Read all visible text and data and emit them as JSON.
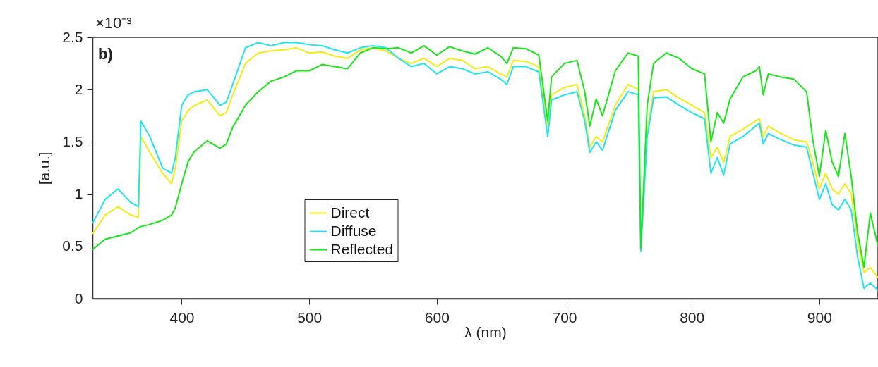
{
  "chart_data": {
    "type": "line",
    "xlabel": "λ (nm)",
    "ylabel": "[a.u.]",
    "annotations": [
      "×10⁻³",
      "b)"
    ],
    "x": [
      330,
      340,
      350,
      360,
      366,
      368,
      375,
      385,
      392,
      395,
      400,
      405,
      410,
      420,
      430,
      435,
      440,
      450,
      460,
      470,
      480,
      490,
      500,
      510,
      520,
      530,
      540,
      550,
      560,
      570,
      580,
      590,
      600,
      610,
      620,
      630,
      640,
      650,
      655,
      660,
      670,
      680,
      687,
      690,
      700,
      710,
      716,
      720,
      725,
      730,
      740,
      750,
      758,
      760,
      765,
      770,
      780,
      790,
      800,
      810,
      815,
      820,
      825,
      830,
      840,
      850,
      853,
      856,
      860,
      870,
      880,
      890,
      895,
      900,
      905,
      910,
      915,
      920,
      925,
      930,
      935,
      940,
      946
    ],
    "series": [
      {
        "name": "Direct",
        "color": "#f2ee12",
        "values": [
          0.62,
          0.8,
          0.88,
          0.8,
          0.78,
          1.55,
          1.4,
          1.2,
          1.1,
          1.25,
          1.7,
          1.8,
          1.85,
          1.9,
          1.75,
          1.78,
          1.95,
          2.25,
          2.35,
          2.37,
          2.38,
          2.4,
          2.35,
          2.36,
          2.32,
          2.3,
          2.38,
          2.4,
          2.37,
          2.3,
          2.25,
          2.3,
          2.22,
          2.3,
          2.28,
          2.2,
          2.22,
          2.15,
          2.12,
          2.28,
          2.27,
          2.22,
          1.65,
          1.95,
          2.02,
          2.05,
          1.75,
          1.45,
          1.55,
          1.5,
          1.85,
          2.05,
          2.0,
          null,
          1.6,
          1.98,
          2.0,
          1.92,
          1.85,
          1.78,
          1.35,
          1.45,
          1.3,
          1.55,
          1.62,
          1.7,
          1.72,
          1.55,
          1.65,
          1.58,
          1.52,
          1.5,
          1.3,
          1.05,
          1.2,
          1.05,
          1.0,
          1.1,
          1.0,
          0.55,
          0.25,
          0.3,
          0.2
        ]
      },
      {
        "name": "Diffuse",
        "color": "#1ee5f2",
        "values": [
          0.72,
          0.95,
          1.05,
          0.92,
          0.88,
          1.7,
          1.55,
          1.25,
          1.2,
          1.35,
          1.85,
          1.95,
          1.98,
          2.0,
          1.85,
          1.88,
          2.05,
          2.4,
          2.45,
          2.42,
          2.45,
          2.45,
          2.43,
          2.42,
          2.38,
          2.35,
          2.4,
          2.42,
          2.4,
          2.3,
          2.22,
          2.25,
          2.15,
          2.22,
          2.2,
          2.15,
          2.17,
          2.1,
          2.05,
          2.22,
          2.22,
          2.17,
          1.55,
          1.9,
          1.95,
          1.98,
          1.7,
          1.4,
          1.5,
          1.42,
          1.8,
          1.98,
          1.95,
          0.45,
          1.55,
          1.92,
          1.93,
          1.85,
          1.78,
          1.72,
          1.2,
          1.35,
          1.18,
          1.48,
          1.55,
          1.65,
          1.68,
          1.48,
          1.58,
          1.52,
          1.47,
          1.45,
          1.2,
          0.95,
          1.1,
          0.9,
          0.85,
          0.95,
          0.85,
          0.4,
          0.1,
          0.15,
          0.08
        ]
      },
      {
        "name": "Reflected",
        "color": "#17e817",
        "values": [
          0.47,
          0.57,
          0.6,
          0.63,
          0.68,
          0.69,
          0.71,
          0.75,
          0.8,
          0.87,
          1.1,
          1.31,
          1.41,
          1.51,
          1.44,
          1.48,
          1.64,
          1.85,
          1.98,
          2.08,
          2.12,
          2.18,
          2.18,
          2.24,
          2.22,
          2.2,
          2.35,
          2.4,
          2.39,
          2.4,
          2.35,
          2.42,
          2.33,
          2.41,
          2.37,
          2.34,
          2.4,
          2.32,
          2.25,
          2.4,
          2.39,
          2.33,
          1.7,
          2.12,
          2.25,
          2.28,
          1.98,
          1.65,
          1.91,
          1.75,
          2.18,
          2.35,
          2.32,
          0.48,
          1.85,
          2.25,
          2.35,
          2.3,
          2.2,
          2.15,
          1.5,
          1.78,
          1.68,
          1.91,
          2.12,
          2.18,
          2.22,
          1.95,
          2.15,
          2.12,
          2.1,
          1.98,
          1.51,
          1.17,
          1.61,
          1.31,
          1.17,
          1.58,
          1.17,
          0.63,
          0.3,
          0.82,
          0.5
        ]
      }
    ],
    "xlim": [
      330,
      946
    ],
    "xticks": [
      400,
      500,
      600,
      700,
      800,
      900
    ],
    "ylim": [
      0,
      2.5
    ],
    "yticks": [
      0,
      0.5,
      1,
      1.5,
      2,
      2.5
    ],
    "legend": "bottom left",
    "grid": false,
    "marker": "none",
    "line_style": "solid"
  }
}
